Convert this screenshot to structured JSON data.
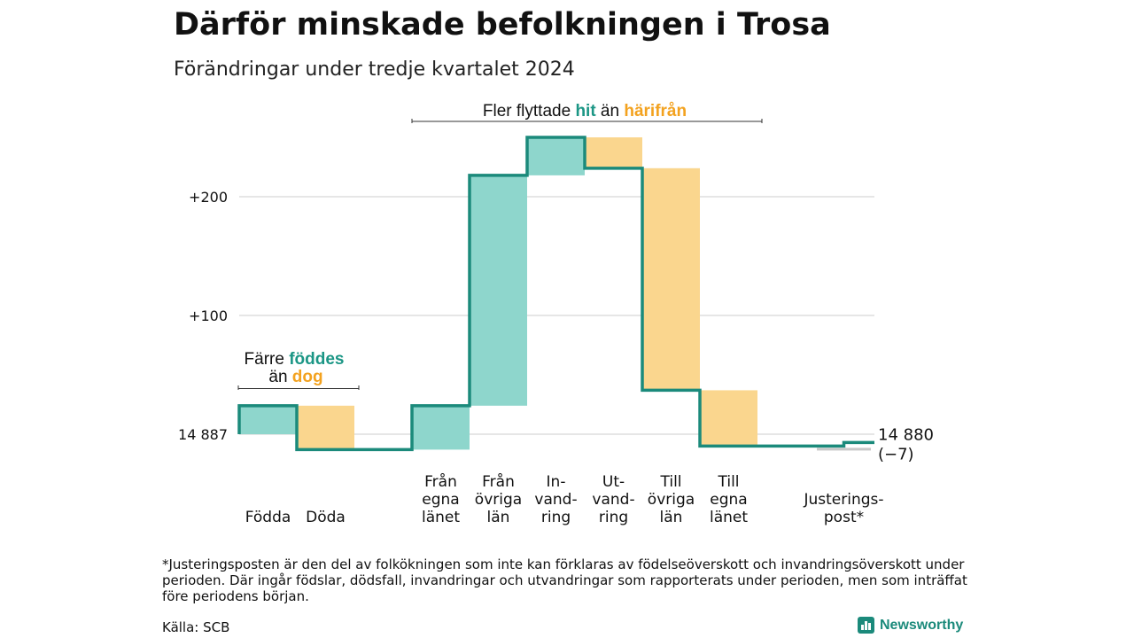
{
  "title": "Därför minskade befolkningen i Trosa",
  "subtitle": "Förändringar under tredje kvartalet 2024",
  "chart_data": {
    "type": "waterfall",
    "start_value": 14887,
    "start_label": "14 887",
    "end_value": 14880,
    "end_label": "14 880",
    "end_change_label": "(−7)",
    "y_ticks": [
      {
        "value": 100,
        "label": "+100"
      },
      {
        "value": 200,
        "label": "+200"
      }
    ],
    "ylim": [
      -30,
      270
    ],
    "grid": true,
    "steps": [
      {
        "lines": [
          "Födda"
        ],
        "change": 24,
        "kind": "in"
      },
      {
        "lines": [
          "Döda"
        ],
        "change": -37,
        "kind": "out"
      },
      {
        "lines": [
          "Från",
          "egna",
          "länet"
        ],
        "change": 37,
        "kind": "in"
      },
      {
        "lines": [
          "Från",
          "övriga",
          "län"
        ],
        "change": 194,
        "kind": "in"
      },
      {
        "lines": [
          "In-",
          "vand-",
          "ring"
        ],
        "change": 32,
        "kind": "in"
      },
      {
        "lines": [
          "Ut-",
          "vand-",
          "ring"
        ],
        "change": -26,
        "kind": "out"
      },
      {
        "lines": [
          "Till",
          "övriga",
          "län"
        ],
        "change": -187,
        "kind": "out"
      },
      {
        "lines": [
          "Till",
          "egna",
          "länet"
        ],
        "change": -47,
        "kind": "out"
      },
      {
        "lines": [
          "Justerings-",
          "post*"
        ],
        "change": 3,
        "kind": "adjust"
      }
    ],
    "annotations": {
      "birth": {
        "line1_prefix": "Färre ",
        "line1_highlight": "föddes",
        "line2_prefix": "än ",
        "line2_highlight": "dog"
      },
      "migration": {
        "prefix": "Fler flyttade ",
        "highlight_in": "hit",
        "middle": " än ",
        "highlight_out": "härifrån"
      }
    },
    "colors": {
      "in_fill": "#8ed6cc",
      "out_fill": "#fad68e",
      "line": "#1b8a7b",
      "in_text": "#1b9685",
      "out_text": "#f3a21f",
      "adjust_fill": "#c8c8c8",
      "grid": "#dddddd"
    }
  },
  "footnote": "*Justeringsposten är den del av folkökningen som inte kan förklaras av födelseöverskott och invandringsöverskott under perioden. Där ingår födslar, dödsfall, invandringar och utvandringar som rapporterats under perioden, men som inträffat före periodens början.",
  "source": "Källa: SCB",
  "brand": "Newsworthy",
  "brand_icon": "bar-chart-icon"
}
